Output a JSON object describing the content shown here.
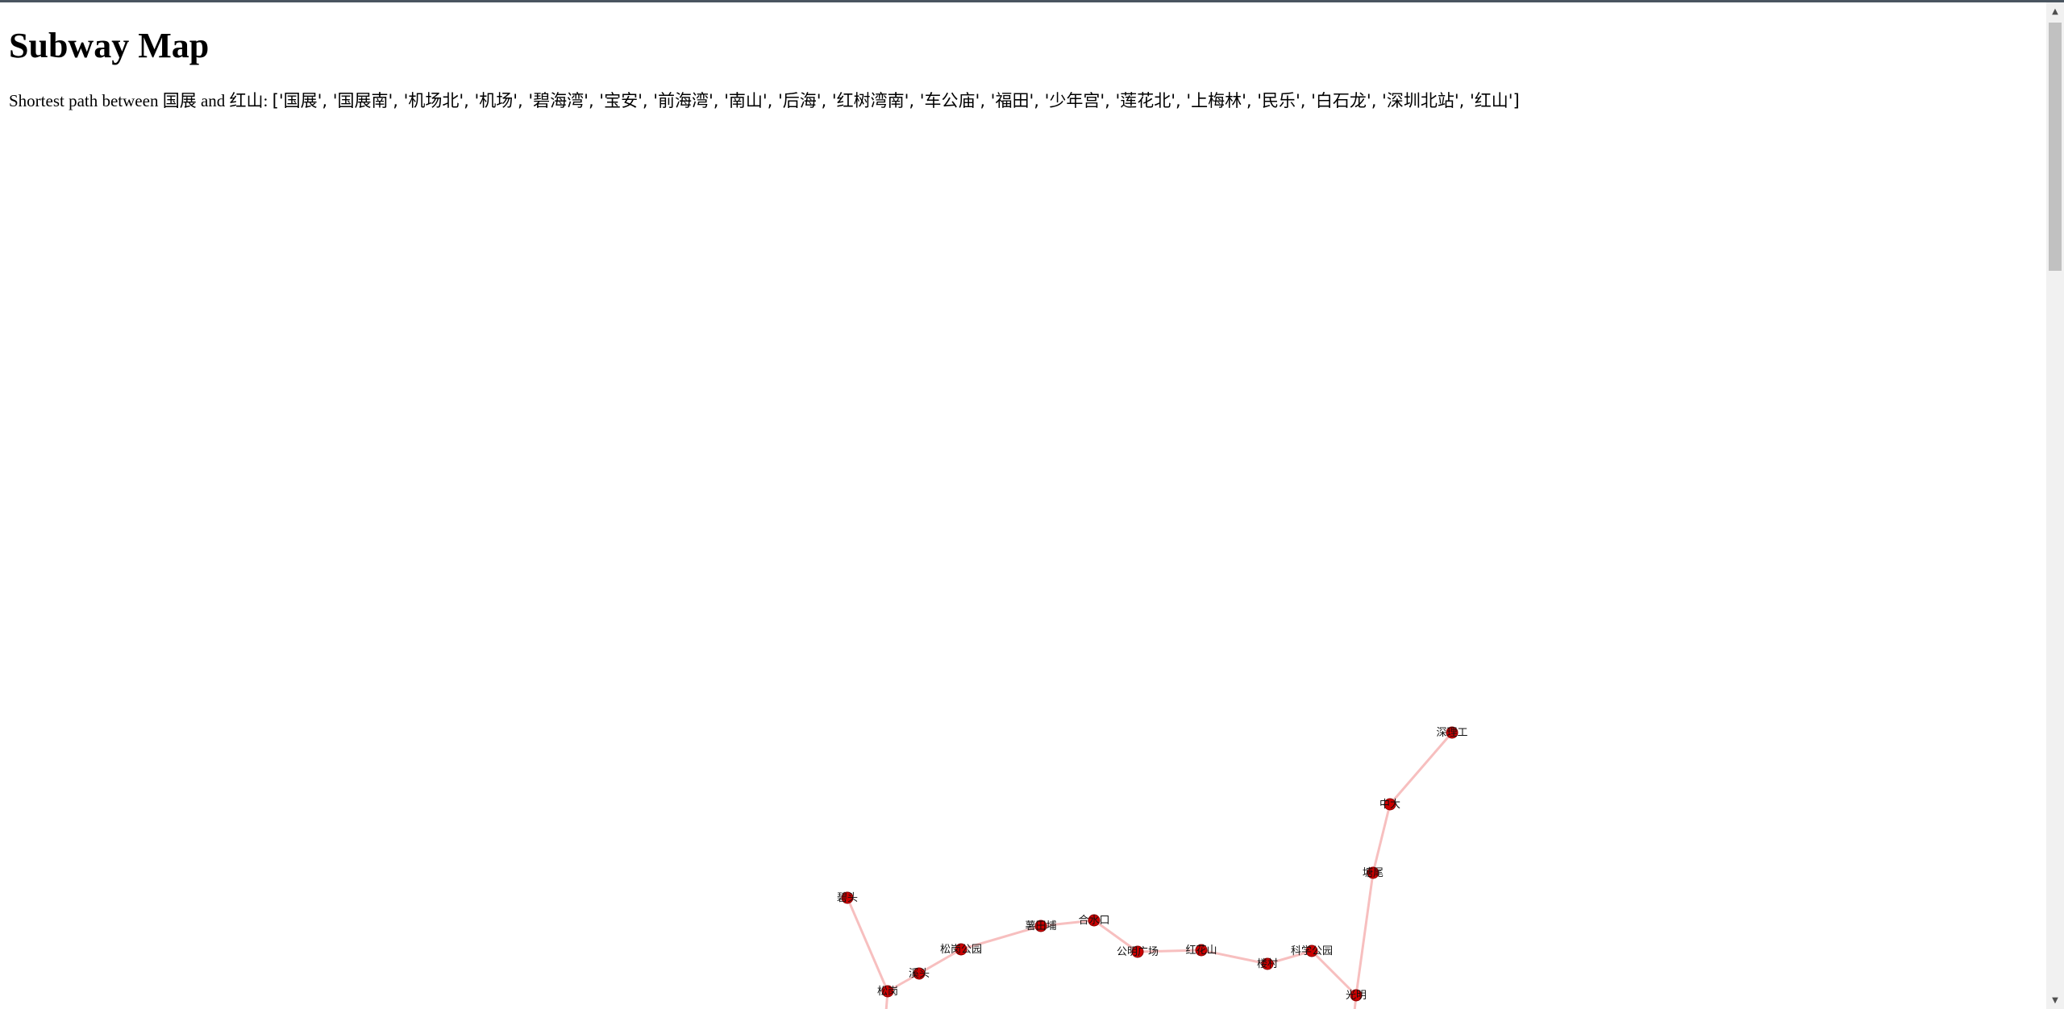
{
  "page": {
    "title": "Subway Map",
    "path_prefix": "Shortest path between ",
    "start_station": "国展",
    "path_and": " and ",
    "end_station": "红山",
    "path_sep": ": ",
    "path_list": "['国展', '国展南', '机场北', '机场', '碧海湾', '宝安', '前海湾', '南山', '后海', '红树湾南', '车公庙', '福田', '少年宫', '莲花北', '上梅林', '民乐', '白石龙', '深圳北站', '红山']"
  },
  "colors": {
    "node": "#cc0000",
    "edge": "#f08a8a",
    "scrollbar_track": "#f1f1f1",
    "scrollbar_thumb": "#c1c1c1"
  },
  "map": {
    "stations": [
      {
        "id": "s1",
        "label": "深理工"
      },
      {
        "id": "s2",
        "label": "中大"
      },
      {
        "id": "s3",
        "label": "塘尾"
      },
      {
        "id": "s4",
        "label": "楼村"
      },
      {
        "id": "s5",
        "label": "科学公园"
      },
      {
        "id": "s6",
        "label": "光明"
      },
      {
        "id": "s7",
        "label": "红花山"
      },
      {
        "id": "s8",
        "label": "公明广场"
      },
      {
        "id": "s9",
        "label": "合水口"
      },
      {
        "id": "s10",
        "label": "薯田埔"
      },
      {
        "id": "s11",
        "label": "松岗公园"
      },
      {
        "id": "s12",
        "label": "溪头"
      },
      {
        "id": "s13",
        "label": "松岗"
      },
      {
        "id": "s14",
        "label": "碧头"
      }
    ],
    "edges": [
      [
        "s1",
        "s2"
      ],
      [
        "s2",
        "s3"
      ],
      [
        "s3",
        "s6"
      ],
      [
        "s6",
        "s5"
      ],
      [
        "s5",
        "s4"
      ],
      [
        "s4",
        "s7"
      ],
      [
        "s7",
        "s8"
      ],
      [
        "s8",
        "s9"
      ],
      [
        "s9",
        "s10"
      ],
      [
        "s10",
        "s11"
      ],
      [
        "s11",
        "s12"
      ],
      [
        "s12",
        "s13"
      ],
      [
        "s13",
        "s14"
      ]
    ]
  }
}
